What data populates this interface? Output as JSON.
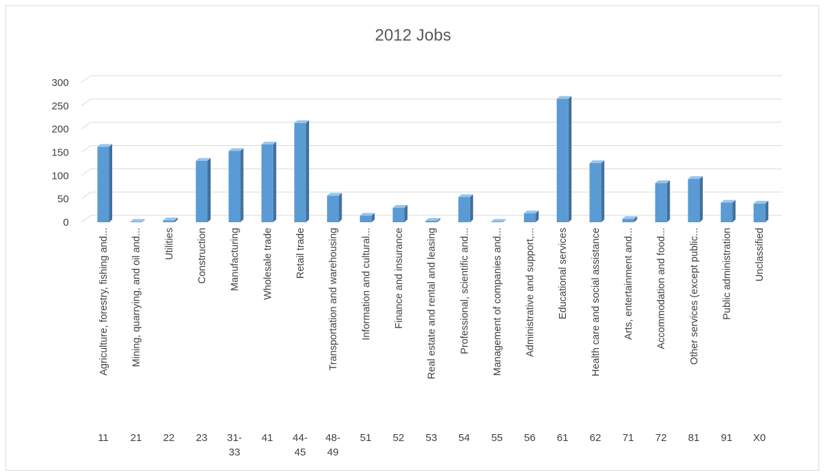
{
  "chart_data": {
    "type": "bar",
    "title": "2012 Jobs",
    "style": "3d-column",
    "ylim": [
      0,
      300
    ],
    "yticks": [
      0,
      50,
      100,
      150,
      200,
      250,
      300
    ],
    "grid": true,
    "legend": "none",
    "colors": {
      "bar_front": "#5B9BD5",
      "bar_side": "#41719C",
      "bar_top": "#9DC3E6",
      "grid": "#D9D9D9",
      "text": "#404040"
    },
    "categories": [
      {
        "name": "Agriculture, forestry, fishing and...",
        "code": [
          "11"
        ]
      },
      {
        "name": "Mining, quarrying, and oil and...",
        "code": [
          "21"
        ]
      },
      {
        "name": "Utilities",
        "code": [
          "22"
        ]
      },
      {
        "name": "Construction",
        "code": [
          "23"
        ]
      },
      {
        "name": "Manufacturing",
        "code": [
          "31-",
          "33"
        ]
      },
      {
        "name": "Wholesale trade",
        "code": [
          "41"
        ]
      },
      {
        "name": "Retail trade",
        "code": [
          "44-",
          "45"
        ]
      },
      {
        "name": "Transportation and warehousing",
        "code": [
          "48-",
          "49"
        ]
      },
      {
        "name": "Information and cultural...",
        "code": [
          "51"
        ]
      },
      {
        "name": "Finance and insurance",
        "code": [
          "52"
        ]
      },
      {
        "name": "Real estate and rental and leasing",
        "code": [
          "53"
        ]
      },
      {
        "name": "Professional, scientific and...",
        "code": [
          "54"
        ]
      },
      {
        "name": "Management of companies and...",
        "code": [
          "55"
        ]
      },
      {
        "name": "Administrative and support,...",
        "code": [
          "56"
        ]
      },
      {
        "name": "Educational services",
        "code": [
          "61"
        ]
      },
      {
        "name": "Health care and social assistance",
        "code": [
          "62"
        ]
      },
      {
        "name": "Arts, entertainment and...",
        "code": [
          "71"
        ]
      },
      {
        "name": "Accommodation and food...",
        "code": [
          "72"
        ]
      },
      {
        "name": "Other services (except public...",
        "code": [
          "81"
        ]
      },
      {
        "name": "Public administration",
        "code": [
          "91"
        ]
      },
      {
        "name": "Unclassified",
        "code": [
          "X0"
        ]
      }
    ],
    "values": [
      162,
      1,
      4,
      132,
      153,
      167,
      213,
      57,
      14,
      31,
      3,
      54,
      1,
      19,
      265,
      127,
      7,
      84,
      93,
      42,
      40
    ]
  }
}
